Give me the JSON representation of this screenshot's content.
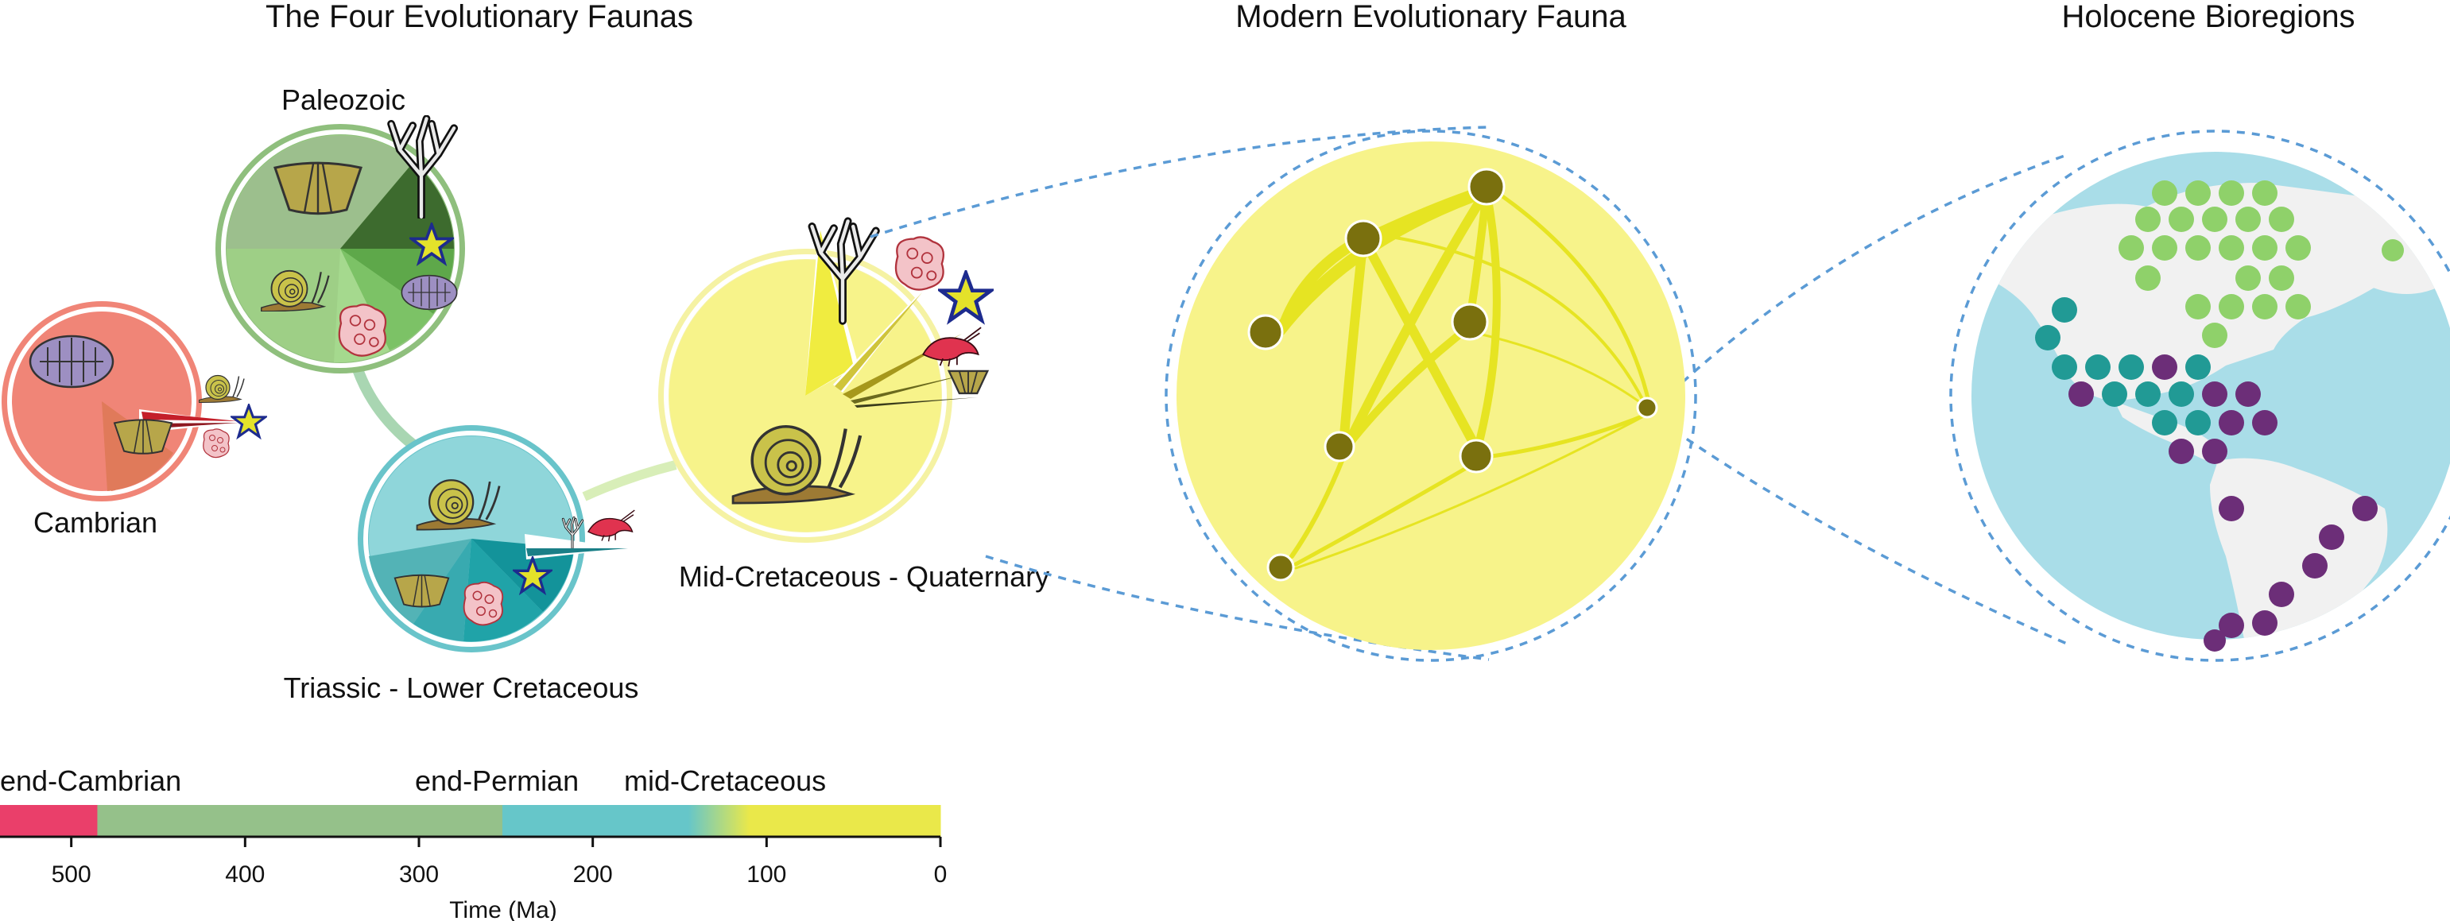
{
  "panels": {
    "four_faunas": {
      "title": "The Four Evolutionary Faunas"
    },
    "modern_fauna": {
      "title": "Modern Evolutionary Fauna"
    },
    "holocene": {
      "title": "Holocene Bioregions"
    }
  },
  "faunas": [
    {
      "id": "cambrian",
      "label": "Cambrian",
      "color": "#f08577"
    },
    {
      "id": "paleozoic",
      "label": "Paleozoic",
      "color": "#8fbf7d"
    },
    {
      "id": "triassic",
      "label": "Triassic - Lower Cretaceous",
      "color": "#69c4ca"
    },
    {
      "id": "modern",
      "label": "Mid-Cretaceous - Quaternary",
      "color": "#f5f2a3"
    }
  ],
  "timeline": {
    "events": [
      "end-Cambrian",
      "end-Permian",
      "mid-Cretaceous"
    ],
    "axis_label": "Time (Ma)",
    "ticks": [
      "500",
      "400",
      "300",
      "200",
      "100",
      "0"
    ],
    "segments": [
      {
        "from": 541,
        "to": 485,
        "color": "#ea3f6a"
      },
      {
        "from": 485,
        "to": 252,
        "color": "#95c18a"
      },
      {
        "from": 252,
        "to": 145,
        "color": "#66c6c9"
      },
      {
        "from": 145,
        "to": 110,
        "color": "gradient",
        "color_start": "#66c6c9",
        "color_end": "#eae84a"
      },
      {
        "from": 110,
        "to": 0,
        "color": "#eae84a"
      }
    ]
  },
  "colors": {
    "node": "#7a700e",
    "edge": "#e6e422",
    "connector": "#5b9bd5",
    "ocean": "#a9dde8",
    "land": "#f1f1f1",
    "region_green": "#8fd16a",
    "region_teal": "#219a95",
    "region_purple": "#6c2e78"
  },
  "icons": [
    "trilobite-icon",
    "brachiopod-icon",
    "snail-icon",
    "starfish-icon",
    "bryozoan-icon",
    "coral-icon",
    "shrimp-icon",
    "crinoid-icon"
  ]
}
